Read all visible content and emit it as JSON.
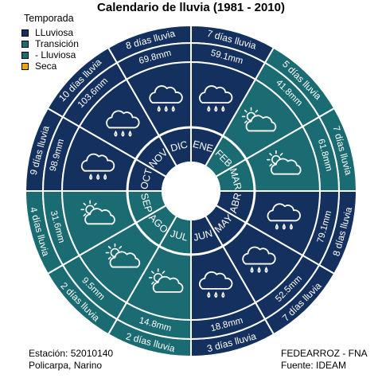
{
  "chart_data": {
    "type": "radial-calendar",
    "title": "Calendario de lluvia (1981 - 2010)",
    "legend": {
      "title": "Temporada",
      "position": "top-left",
      "items": [
        {
          "label": "LLuviosa",
          "color": "#14305e"
        },
        {
          "label": "Transición",
          "color": "#1b6b72"
        },
        {
          "label": "- Lluviosa",
          "color": "#1b6b72"
        },
        {
          "label": "Seca",
          "color": "#f0a500"
        }
      ]
    },
    "months": [
      {
        "month": "ENE",
        "rain_mm": "59.1mm",
        "rain_days": "7 días lluvia",
        "season": "LLuviosa",
        "icon": "rain-cloud-icon"
      },
      {
        "month": "FEB",
        "rain_mm": "41.8mm",
        "rain_days": "5 días lluvia",
        "season": "Transición",
        "icon": "sun-cloud-icon"
      },
      {
        "month": "MAR",
        "rain_mm": "61.8mm",
        "rain_days": "7 días lluvia",
        "season": "Transición",
        "icon": "sun-cloud-icon"
      },
      {
        "month": "ABR",
        "rain_mm": "79.1mm",
        "rain_days": "8 días lluvia",
        "season": "LLuviosa",
        "icon": "rain-cloud-icon"
      },
      {
        "month": "MAY",
        "rain_mm": "52.5mm",
        "rain_days": "7 días lluvia",
        "season": "LLuviosa",
        "icon": "rain-cloud-icon"
      },
      {
        "month": "JUN",
        "rain_mm": "18.8mm",
        "rain_days": "3 días lluvia",
        "season": "LLuviosa",
        "icon": "rain-cloud-icon"
      },
      {
        "month": "JUL",
        "rain_mm": "14.8mm",
        "rain_days": "2 días lluvia",
        "season": "Transición",
        "icon": "sun-cloud-icon"
      },
      {
        "month": "AGO",
        "rain_mm": "9.5mm",
        "rain_days": "2 días lluvia",
        "season": "Transición",
        "icon": "sun-cloud-icon"
      },
      {
        "month": "SEP",
        "rain_mm": "31.6mm",
        "rain_days": "4 días lluvia",
        "season": "Transición",
        "icon": "sun-cloud-icon"
      },
      {
        "month": "OCT",
        "rain_mm": "98.9mm",
        "rain_days": "9 días lluvia",
        "season": "LLuviosa",
        "icon": "rain-cloud-icon"
      },
      {
        "month": "NOV",
        "rain_mm": "103.6mm",
        "rain_days": "10 días lluvia",
        "season": "LLuviosa",
        "icon": "rain-cloud-icon"
      },
      {
        "month": "DIC",
        "rain_mm": "69.8mm",
        "rain_days": "8 días lluvia",
        "season": "LLuviosa",
        "icon": "rain-cloud-icon"
      }
    ]
  },
  "footer": {
    "station": "Estación: 52010140",
    "location": "Policarpa, Narino",
    "org": "FEDEARROZ - FNA",
    "source": "Fuente: IDEAM"
  }
}
